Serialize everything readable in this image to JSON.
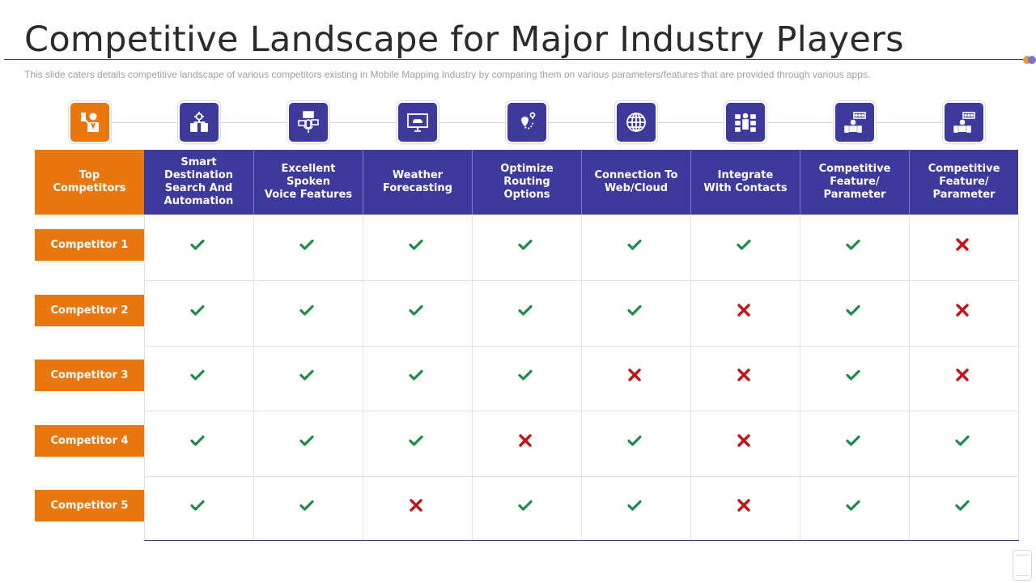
{
  "slide": {
    "title": "Competitive Landscape for Major Industry Players",
    "subtitle": "This slide caters details competitive landscape of various competitors existing in Mobile Mapping Industry by comparing them on various parameters/features that are provided through various apps."
  },
  "colors": {
    "header_blue": "#3d3a9c",
    "accent_orange": "#e8770e",
    "check_green": "#1f8a4c",
    "cross_red": "#c0141b",
    "dot_orange": "#e8943a",
    "dot_purple": "#7b73c9"
  },
  "table": {
    "corner_header": "Top\nCompetitors",
    "columns": [
      {
        "label": "Smart Destination\nSearch And\nAutomation",
        "icon": "gear-flowchart-icon"
      },
      {
        "label": "Excellent Spoken\nVoice Features",
        "icon": "voice-assistant-icon"
      },
      {
        "label": "Weather\nForecasting",
        "icon": "monitor-weather-icon"
      },
      {
        "label": "Optimize Routing\nOptions",
        "icon": "route-pin-icon"
      },
      {
        "label": "Connection To\nWeb/Cloud",
        "icon": "globe-icon"
      },
      {
        "label": "Integrate\nWith Contacts",
        "icon": "contacts-network-icon"
      },
      {
        "label": "Competitive\nFeature/\nParameter",
        "icon": "presentation-person-icon"
      },
      {
        "label": "Competitive\nFeature/\nParameter",
        "icon": "presentation-person-icon"
      }
    ],
    "corner_icon": "presenter-icon",
    "rows": [
      {
        "name": "Competitor 1",
        "values": [
          true,
          true,
          true,
          true,
          true,
          true,
          true,
          false
        ]
      },
      {
        "name": "Competitor 2",
        "values": [
          true,
          true,
          true,
          true,
          true,
          false,
          true,
          false
        ]
      },
      {
        "name": "Competitor 3",
        "values": [
          true,
          true,
          true,
          true,
          false,
          false,
          true,
          false
        ]
      },
      {
        "name": "Competitor 4",
        "values": [
          true,
          true,
          true,
          false,
          true,
          false,
          true,
          true
        ]
      },
      {
        "name": "Competitor 5",
        "values": [
          true,
          true,
          false,
          true,
          true,
          false,
          true,
          true
        ]
      }
    ]
  }
}
